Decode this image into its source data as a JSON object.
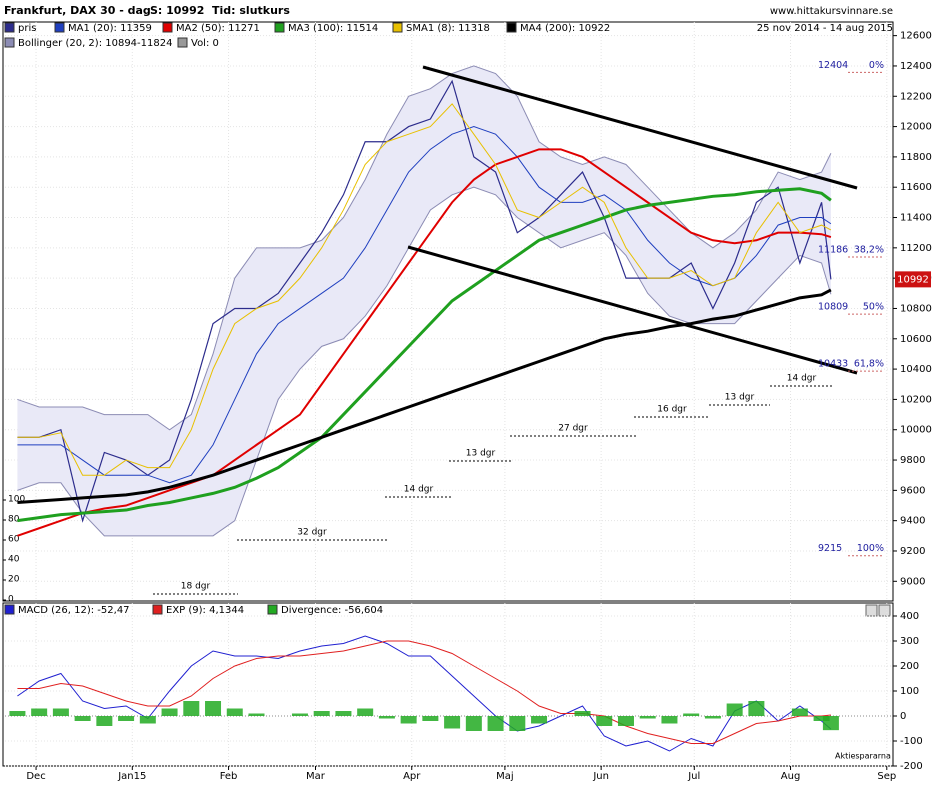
{
  "chart_data": [
    {
      "type": "line",
      "title": "Frankfurt, DAX 30 -  dag",
      "price_label": "S: 10992",
      "time_label": "Tid: slutkurs",
      "source": "www.hittakursvinnare.se",
      "date_range": "25 nov 2014 - 14 aug 2015",
      "x": [
        0,
        7,
        14,
        21,
        28,
        35,
        42,
        49,
        56,
        63,
        70,
        77,
        84,
        91,
        98,
        105,
        112,
        119,
        126,
        133,
        140,
        147,
        154,
        161,
        168,
        175,
        182,
        189,
        196,
        203,
        210,
        217,
        224,
        231,
        238,
        245,
        252,
        259,
        262
      ],
      "xlim": [
        -4,
        282
      ],
      "xticks": [
        {
          "value": 6,
          "label": "Dec"
        },
        {
          "value": 37,
          "label": "Jan15"
        },
        {
          "value": 68,
          "label": "Feb"
        },
        {
          "value": 96,
          "label": "Mar"
        },
        {
          "value": 127,
          "label": "Apr"
        },
        {
          "value": 157,
          "label": "Maj"
        },
        {
          "value": 188,
          "label": "Jun"
        },
        {
          "value": 218,
          "label": "Jul"
        },
        {
          "value": 249,
          "label": "Aug"
        },
        {
          "value": 280,
          "label": "Sep"
        }
      ],
      "ylim": [
        8870,
        12690
      ],
      "yticks": [
        9000,
        9200,
        9400,
        9600,
        9800,
        10000,
        10200,
        10400,
        10600,
        10800,
        11000,
        11200,
        11400,
        11600,
        11800,
        12000,
        12200,
        12400,
        12600
      ],
      "y2lim": [
        0,
        100
      ],
      "y2ticks": [
        0,
        20,
        40,
        60,
        80,
        100
      ],
      "grid": true,
      "bollinger": {
        "name": "Bollinger (20, 2): 10894-11824",
        "color": "#8c8cb4",
        "fill": "#e9e9f7",
        "upper": [
          10200,
          10150,
          10150,
          10150,
          10100,
          10100,
          10100,
          10000,
          10100,
          10500,
          11000,
          11200,
          11200,
          11200,
          11250,
          11400,
          11650,
          11950,
          12200,
          12250,
          12350,
          12400,
          12350,
          12200,
          11900,
          11800,
          11750,
          11800,
          11750,
          11600,
          11450,
          11300,
          11200,
          11300,
          11450,
          11700,
          11650,
          11700,
          11824
        ],
        "lower": [
          9600,
          9650,
          9650,
          9450,
          9300,
          9300,
          9300,
          9300,
          9300,
          9300,
          9400,
          9800,
          10200,
          10400,
          10550,
          10600,
          10750,
          10950,
          11200,
          11450,
          11550,
          11600,
          11550,
          11400,
          11300,
          11200,
          11250,
          11300,
          11150,
          10900,
          10750,
          10700,
          10700,
          10700,
          10850,
          11000,
          11150,
          11100,
          10894
        ]
      },
      "series": [
        {
          "name": "pris",
          "color": "#2c2c8c",
          "width": 1.2,
          "values": [
            9950,
            9950,
            10000,
            9400,
            9850,
            9800,
            9700,
            9800,
            10200,
            10700,
            10800,
            10800,
            10900,
            11100,
            11300,
            11550,
            11900,
            11900,
            12000,
            12050,
            12300,
            11800,
            11700,
            11300,
            11400,
            11550,
            11700,
            11400,
            11000,
            11000,
            11000,
            11100,
            10800,
            11100,
            11500,
            11600,
            11100,
            11500,
            10992
          ]
        },
        {
          "name": "MA1 (20): 11359",
          "color": "#1f3fbf",
          "width": 1,
          "values": [
            9900,
            9900,
            9900,
            9800,
            9700,
            9700,
            9700,
            9650,
            9700,
            9900,
            10200,
            10500,
            10700,
            10800,
            10900,
            11000,
            11200,
            11450,
            11700,
            11850,
            11950,
            12000,
            11950,
            11800,
            11600,
            11500,
            11500,
            11550,
            11450,
            11250,
            11100,
            11000,
            10950,
            11000,
            11150,
            11350,
            11400,
            11400,
            11359
          ]
        },
        {
          "name": "MA2 (50): 11271",
          "color": "#e00000",
          "width": 2,
          "values": [
            9300,
            9350,
            9400,
            9450,
            9480,
            9500,
            9550,
            9600,
            9650,
            9700,
            9800,
            9900,
            10000,
            10100,
            10300,
            10500,
            10700,
            10900,
            11100,
            11300,
            11500,
            11650,
            11750,
            11800,
            11850,
            11850,
            11800,
            11700,
            11600,
            11500,
            11400,
            11300,
            11250,
            11230,
            11250,
            11300,
            11300,
            11290,
            11271
          ]
        },
        {
          "name": "MA3 (100): 11514",
          "color": "#1fa01f",
          "width": 3,
          "values": [
            9400,
            9420,
            9440,
            9450,
            9460,
            9470,
            9500,
            9520,
            9550,
            9580,
            9620,
            9680,
            9750,
            9850,
            9950,
            10100,
            10250,
            10400,
            10550,
            10700,
            10850,
            10950,
            11050,
            11150,
            11250,
            11300,
            11350,
            11400,
            11450,
            11480,
            11500,
            11520,
            11540,
            11550,
            11570,
            11580,
            11590,
            11560,
            11514
          ]
        },
        {
          "name": "SMA1 (8): 11318",
          "color": "#e8c000",
          "width": 1,
          "values": [
            9950,
            9950,
            9980,
            9700,
            9700,
            9800,
            9750,
            9750,
            10000,
            10400,
            10700,
            10800,
            10850,
            11000,
            11200,
            11450,
            11750,
            11900,
            11950,
            12000,
            12150,
            11950,
            11750,
            11450,
            11400,
            11500,
            11600,
            11500,
            11200,
            11000,
            11000,
            11050,
            10950,
            11000,
            11300,
            11500,
            11300,
            11350,
            11318
          ]
        },
        {
          "name": "MA4 (200): 10922",
          "color": "#000000",
          "width": 3,
          "values": [
            9520,
            9530,
            9540,
            9550,
            9560,
            9570,
            9590,
            9620,
            9660,
            9700,
            9750,
            9800,
            9850,
            9900,
            9950,
            10000,
            10050,
            10100,
            10150,
            10200,
            10250,
            10300,
            10350,
            10400,
            10450,
            10500,
            10550,
            10600,
            10630,
            10650,
            10680,
            10700,
            10730,
            10750,
            10790,
            10830,
            10870,
            10890,
            10922
          ]
        }
      ],
      "volume_label": "Vol: 0",
      "last_price": 10992,
      "fib_levels": [
        {
          "value": 12404,
          "pct": "0%"
        },
        {
          "value": 11186,
          "pct": "38,2%"
        },
        {
          "value": 10809,
          "pct": "50%"
        },
        {
          "value": 10433,
          "pct": "61,8%"
        },
        {
          "value": 9215,
          "pct": "100%"
        }
      ],
      "durations": [
        "18 dgr",
        "32 dgr",
        "14 dgr",
        "13 dgr",
        "27 dgr",
        "16 dgr",
        "13 dgr",
        "14 dgr"
      ]
    },
    {
      "type": "line",
      "ylim": [
        -200,
        452
      ],
      "yticks": [
        -200,
        -100,
        0,
        100,
        200,
        300,
        400
      ],
      "watermark": "Aktiespararna",
      "series": [
        {
          "name": "MACD (26, 12): -52,47",
          "color": "#2020d0",
          "style": "line",
          "values": [
            80,
            140,
            170,
            60,
            30,
            40,
            -10,
            100,
            200,
            260,
            240,
            240,
            230,
            260,
            280,
            290,
            320,
            290,
            240,
            240,
            160,
            80,
            0,
            -60,
            -40,
            0,
            40,
            -80,
            -120,
            -100,
            -140,
            -90,
            -120,
            20,
            60,
            -20,
            40,
            -20,
            -52.47
          ]
        },
        {
          "name": "EXP (9): 4,1344",
          "color": "#e02020",
          "style": "line",
          "values": [
            110,
            110,
            130,
            120,
            90,
            60,
            40,
            40,
            80,
            150,
            200,
            230,
            240,
            240,
            250,
            260,
            280,
            300,
            300,
            280,
            250,
            200,
            150,
            100,
            40,
            10,
            10,
            0,
            -40,
            -70,
            -90,
            -110,
            -110,
            -70,
            -30,
            -20,
            0,
            0,
            4.1344
          ]
        },
        {
          "name": "Divergence: -56,604",
          "color": "#22aa22",
          "style": "bar",
          "values": [
            20,
            30,
            30,
            -20,
            -40,
            -20,
            -30,
            30,
            60,
            60,
            30,
            10,
            0,
            10,
            20,
            20,
            30,
            -10,
            -30,
            -20,
            -50,
            -60,
            -60,
            -60,
            -30,
            0,
            20,
            -40,
            -40,
            -10,
            -30,
            10,
            -10,
            50,
            60,
            0,
            30,
            -20,
            -56.604
          ]
        }
      ]
    }
  ]
}
